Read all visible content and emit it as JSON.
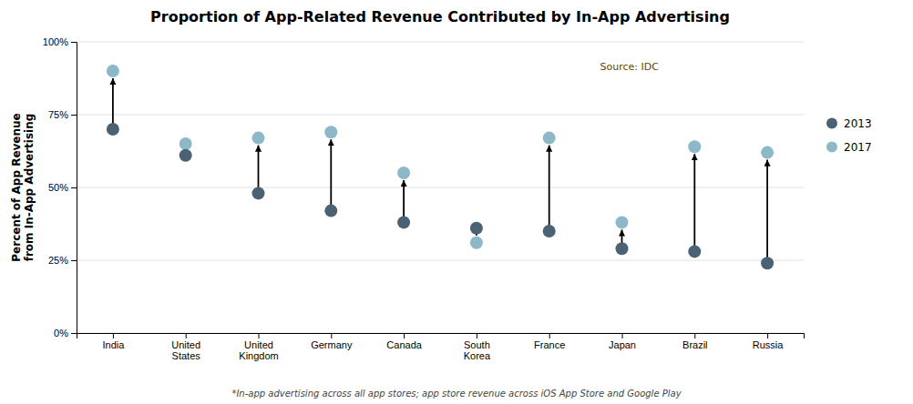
{
  "chart_data": {
    "type": "dumbbell",
    "title": "Proportion of App-Related Revenue Contributed by In-App Advertising",
    "ylabel": "Percent of App Revenue\nfrom In-App Advertising",
    "footnote": "*In-app advertising across all app stores; app store revenue across iOS App Store and Google Play",
    "annotations": [
      {
        "text": "Source: IDC",
        "color": "#5a4a00"
      }
    ],
    "categories": [
      "India",
      "United\nStates",
      "United\nKingdom",
      "Germany",
      "Canada",
      "South\nKorea",
      "France",
      "Japan",
      "Brazil",
      "Russia"
    ],
    "series": [
      {
        "name": "2013",
        "color": "#4a6274",
        "values": [
          0.7,
          0.61,
          0.48,
          0.42,
          0.38,
          0.36,
          0.35,
          0.29,
          0.28,
          0.24
        ]
      },
      {
        "name": "2017",
        "color": "#8db8c8",
        "values": [
          0.9,
          0.65,
          0.67,
          0.69,
          0.55,
          0.31,
          0.67,
          0.38,
          0.64,
          0.62
        ]
      }
    ],
    "ylim": [
      0,
      1.0
    ],
    "yticks": [
      {
        "value": 0,
        "label": "0%"
      },
      {
        "value": 0.25,
        "label": "25%"
      },
      {
        "value": 0.5,
        "label": "50%"
      },
      {
        "value": 0.75,
        "label": "75%"
      },
      {
        "value": 1.0,
        "label": "100%"
      }
    ],
    "grid": true,
    "legend": "right"
  }
}
